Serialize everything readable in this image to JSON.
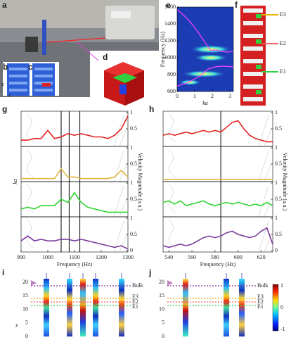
{
  "panel_labels": [
    "a",
    "b",
    "c",
    "d",
    "e",
    "f",
    "g",
    "h",
    "i",
    "j"
  ],
  "axis_letters": [
    "z",
    "x"
  ],
  "f_labels": [
    "E3",
    "E2",
    "E1"
  ],
  "chart_data": [
    {
      "type": "heatmap",
      "xlabel": "ka",
      "ylabel": "Frequency (Hz)",
      "xlim": [
        0,
        3.2
      ],
      "ylim": [
        600,
        1600
      ],
      "xticks": [
        0,
        1,
        2,
        3
      ],
      "yticks": [
        600,
        800,
        1000,
        1200,
        1400,
        1600
      ]
    },
    {
      "type": "line",
      "xlabel": "Frequency (Hz)",
      "ylabel": "ka",
      "y2label": "Velocity Magnitude (a.u.)",
      "xlim": [
        900,
        1300
      ],
      "xticks": [
        900,
        1000,
        1100,
        1200,
        1300
      ],
      "y2lim": [
        0,
        1
      ],
      "y2ticks": [
        0,
        0.5,
        1
      ],
      "vlines": [
        1050,
        1080,
        1120
      ],
      "x": [
        900,
        925,
        950,
        975,
        1000,
        1025,
        1050,
        1075,
        1100,
        1125,
        1150,
        1175,
        1200,
        1225,
        1250,
        1275,
        1300
      ],
      "series": [
        {
          "color": "#e32222",
          "values": [
            0.15,
            0.15,
            0.2,
            0.2,
            0.45,
            0.2,
            0.25,
            0.35,
            0.3,
            0.35,
            0.3,
            0.25,
            0.25,
            0.2,
            0.3,
            0.5,
            0.9
          ]
        },
        {
          "color": "#e2b43a",
          "values": [
            0.05,
            0.05,
            0.05,
            0.05,
            0.05,
            0.05,
            0.35,
            0.1,
            0.1,
            0.05,
            0.05,
            0.05,
            0.05,
            0.05,
            0.1,
            0.3,
            0.1
          ]
        },
        {
          "color": "#2fd62f",
          "values": [
            0.2,
            0.25,
            0.2,
            0.3,
            0.3,
            0.3,
            0.5,
            0.4,
            0.7,
            0.4,
            0.25,
            0.2,
            0.15,
            0.1,
            0.1,
            0.1,
            0.1
          ]
        },
        {
          "color": "#7b3c9c",
          "values": [
            0.3,
            0.45,
            0.3,
            0.35,
            0.3,
            0.3,
            0.35,
            0.35,
            0.3,
            0.35,
            0.3,
            0.25,
            0.2,
            0.15,
            0.1,
            0.15,
            0.05
          ]
        }
      ]
    },
    {
      "type": "line",
      "xlabel": "Frequency (Hz)",
      "y2label": "Velocity Magnitude (a.u.)",
      "xlim": [
        535,
        630
      ],
      "xticks": [
        540,
        560,
        580,
        600,
        620
      ],
      "y2lim": [
        0,
        1
      ],
      "y2ticks": [
        0,
        0.5,
        1
      ],
      "vlines": [
        585
      ],
      "x": [
        535,
        540,
        545,
        550,
        555,
        560,
        565,
        570,
        575,
        580,
        585,
        590,
        595,
        600,
        605,
        610,
        615,
        620,
        625,
        630
      ],
      "series": [
        {
          "color": "#e32222",
          "values": [
            0.3,
            0.35,
            0.3,
            0.35,
            0.4,
            0.35,
            0.4,
            0.45,
            0.4,
            0.45,
            0.4,
            0.55,
            0.7,
            0.75,
            0.5,
            0.3,
            0.2,
            0.15,
            0.1,
            0.1
          ]
        },
        {
          "color": "#e2b43a",
          "values": [
            0.02,
            0.02,
            0.03,
            0.02,
            0.03,
            0.02,
            0.03,
            0.02,
            0.03,
            0.02,
            0.02,
            0.03,
            0.02,
            0.03,
            0.02,
            0.02,
            0.03,
            0.02,
            0.03,
            0.02
          ]
        },
        {
          "color": "#2fd62f",
          "values": [
            0.4,
            0.45,
            0.35,
            0.45,
            0.3,
            0.35,
            0.4,
            0.45,
            0.35,
            0.3,
            0.35,
            0.4,
            0.35,
            0.4,
            0.35,
            0.3,
            0.35,
            0.3,
            0.4,
            0.3
          ]
        },
        {
          "color": "#7b3c9c",
          "values": [
            0.15,
            0.1,
            0.15,
            0.2,
            0.15,
            0.2,
            0.3,
            0.4,
            0.45,
            0.4,
            0.45,
            0.55,
            0.6,
            0.5,
            0.45,
            0.4,
            0.45,
            0.6,
            0.7,
            0.2
          ]
        }
      ]
    }
  ],
  "field_maps": {
    "yticks": [
      0,
      5,
      10,
      15,
      20
    ],
    "lines": [
      "Bulk",
      "E3",
      "E2",
      "E1"
    ],
    "colorbar_ticks": [
      1,
      0,
      -1
    ]
  }
}
